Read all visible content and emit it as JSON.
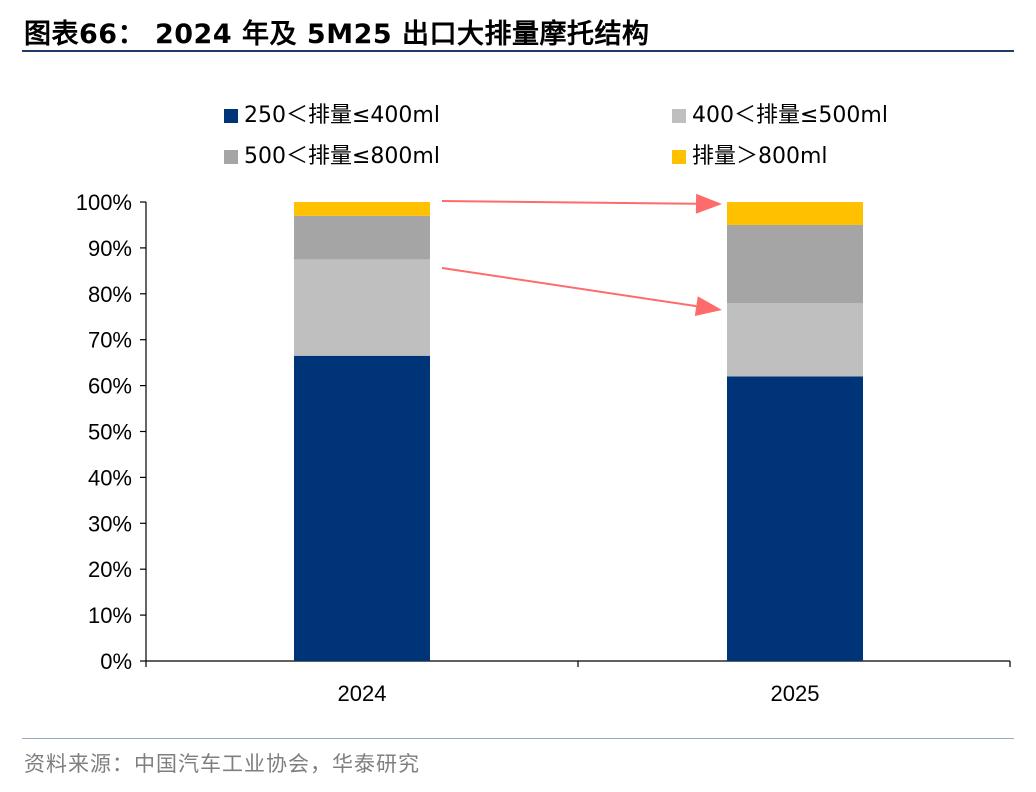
{
  "header": {
    "title": "图表66：  2024 年及 5M25 出口大排量摩托结构"
  },
  "footer": {
    "source": "资料来源：中国汽车工业协会，华泰研究"
  },
  "chart_data": {
    "type": "bar",
    "stacked": true,
    "categories": [
      "2024",
      "2025"
    ],
    "series": [
      {
        "name": "250＜排量≤400ml",
        "color": "#003478",
        "values": [
          66.5,
          62.0
        ]
      },
      {
        "name": "400＜排量≤500ml",
        "color": "#bfbfbf",
        "values": [
          21.0,
          16.0
        ]
      },
      {
        "name": "500＜排量≤800ml",
        "color": "#a5a5a5",
        "values": [
          9.5,
          17.0
        ]
      },
      {
        "name": "排量＞800ml",
        "color": "#ffc000",
        "values": [
          3.0,
          5.0
        ]
      }
    ],
    "ylim": [
      0,
      100
    ],
    "yticks": [
      "0%",
      "10%",
      "20%",
      "30%",
      "40%",
      "50%",
      "60%",
      "70%",
      "80%",
      "90%",
      "100%"
    ],
    "legend_position": "top",
    "grid": false,
    "annotations": [
      {
        "type": "arrow",
        "color": "#ff6b6b",
        "meaning": "top segment share increase 2024→2025"
      },
      {
        "type": "arrow",
        "color": "#ff6b6b",
        "meaning": "500–800ml segment share increase 2024→2025"
      }
    ]
  }
}
